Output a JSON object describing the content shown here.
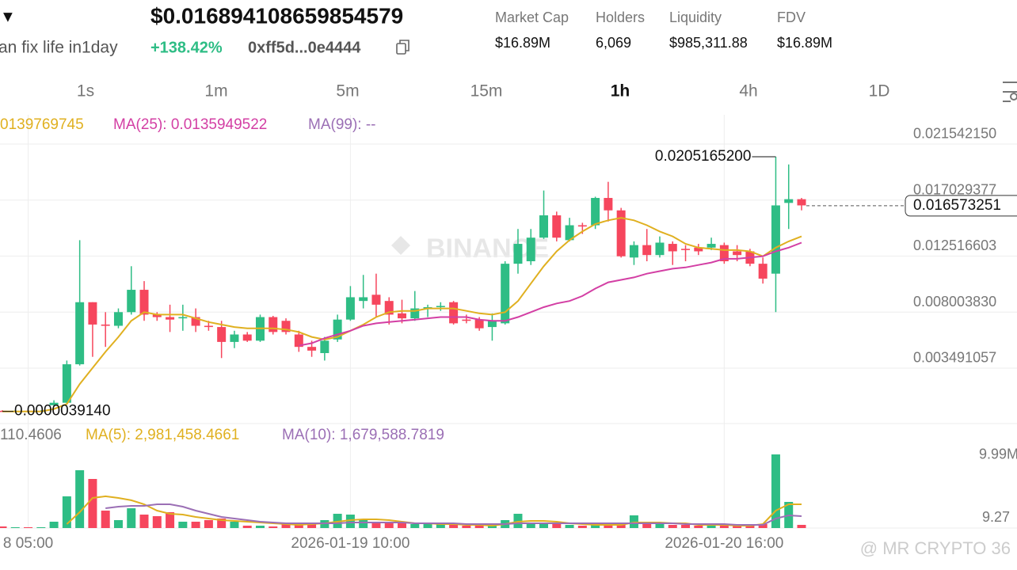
{
  "header": {
    "arrow": "▼",
    "price": "$0.016894108659854579",
    "name": "an fix life in1day",
    "change": "+138.42%",
    "address": "0xff5d...0e4444",
    "stats": [
      {
        "label": "Market Cap",
        "value": "$16.89M"
      },
      {
        "label": "Holders",
        "value": "6,069"
      },
      {
        "label": "Liquidity",
        "value": "$985,311.88"
      },
      {
        "label": "FDV",
        "value": "$16.89M"
      }
    ]
  },
  "intervals": [
    "1s",
    "1m",
    "5m",
    "15m",
    "1h",
    "4h",
    "1D"
  ],
  "watermark": "BINANCE",
  "footer_watermark": "@ MR CRYPTO 36",
  "chart_data": {
    "type": "candlestick",
    "categories": [
      null,
      null,
      "8 05:00",
      null,
      null,
      null,
      null,
      null,
      null,
      null,
      null,
      null,
      null,
      null,
      null,
      null,
      null,
      null,
      null,
      null,
      null,
      null,
      null,
      null,
      null,
      null,
      null,
      "2026-01-19 10:00",
      null,
      null,
      null,
      null,
      null,
      null,
      null,
      null,
      null,
      null,
      null,
      null,
      null,
      null,
      null,
      null,
      null,
      null,
      null,
      null,
      null,
      null,
      null,
      null,
      null,
      null,
      null,
      null,
      "2026-01-20 16:00",
      null,
      null,
      null,
      null,
      null,
      null
    ],
    "open": [
      5e-05,
      4e-05,
      5e-05,
      4e-05,
      0.0005,
      0.0007,
      0.0038,
      0.0088,
      0.007,
      0.0069,
      0.008,
      0.0098,
      0.0078,
      0.0076,
      0.0075,
      0.0076,
      0.0069,
      0.0068,
      0.0056,
      0.0062,
      0.0057,
      0.0076,
      0.0073,
      0.0062,
      0.0052,
      0.0047,
      0.0058,
      0.0074,
      0.0089,
      0.0094,
      0.0089,
      0.0079,
      0.0075,
      0.0083,
      0.0084,
      0.0088,
      0.0074,
      0.0074,
      0.0068,
      0.0071,
      0.0119,
      0.0121,
      0.014,
      0.0158,
      0.0138,
      0.015,
      0.015,
      0.0172,
      0.0162,
      0.0124,
      0.0134,
      0.0126,
      0.0135,
      0.0131,
      0.0132,
      0.0132,
      0.0134,
      0.0129,
      0.0129,
      0.0119,
      0.0111,
      0.0168,
      0.0171
    ],
    "close": [
      4e-05,
      5e-05,
      4e-05,
      5e-05,
      0.0007,
      0.0038,
      0.0088,
      0.007,
      0.0069,
      0.008,
      0.0098,
      0.0078,
      0.0076,
      0.0074,
      0.0076,
      0.0069,
      0.0068,
      0.0056,
      0.0062,
      0.0057,
      0.0076,
      0.0064,
      0.0064,
      0.0052,
      0.0049,
      0.0057,
      0.0074,
      0.0092,
      0.0092,
      0.0086,
      0.0078,
      0.0075,
      0.0083,
      0.0084,
      0.0085,
      0.0071,
      0.0073,
      0.0067,
      0.0073,
      0.0119,
      0.0135,
      0.014,
      0.0158,
      0.014,
      0.015,
      0.0149,
      0.0172,
      0.0162,
      0.0125,
      0.0134,
      0.0126,
      0.0136,
      0.0129,
      0.013,
      0.0129,
      0.0135,
      0.0121,
      0.0126,
      0.0119,
      0.0107,
      0.0166,
      0.0171,
      0.0166
    ],
    "high": [
      0.0001,
      0.0001,
      0.0001,
      0.0001,
      0.0009,
      0.0041,
      0.0138,
      0.0088,
      0.008,
      0.0083,
      0.0117,
      0.0105,
      0.008,
      0.0086,
      0.0086,
      0.0083,
      0.0073,
      0.0073,
      0.0065,
      0.0064,
      0.0078,
      0.0077,
      0.0075,
      0.0065,
      0.0057,
      0.006,
      0.0078,
      0.0101,
      0.011,
      0.0111,
      0.0092,
      0.009,
      0.0097,
      0.0086,
      0.0088,
      0.0089,
      0.0078,
      0.0076,
      0.0079,
      0.0121,
      0.0147,
      0.0147,
      0.0178,
      0.0161,
      0.0156,
      0.0152,
      0.0173,
      0.0185,
      0.0164,
      0.0137,
      0.0147,
      0.0141,
      0.0137,
      0.0134,
      0.0135,
      0.014,
      0.0136,
      0.0134,
      0.0131,
      0.0124,
      0.02051652,
      0.0199,
      0.0172
    ],
    "low": [
      3.914e-06,
      3e-05,
      3e-05,
      3e-05,
      0.0004,
      0.0006,
      0.0037,
      0.0044,
      0.0052,
      0.0067,
      0.0078,
      0.0073,
      0.0073,
      0.0064,
      0.0065,
      0.0064,
      0.0065,
      0.0043,
      0.0051,
      0.0056,
      0.0056,
      0.0062,
      0.0062,
      0.0048,
      0.0044,
      0.0041,
      0.0056,
      0.0073,
      0.0083,
      0.0076,
      0.007,
      0.0071,
      0.0073,
      0.0076,
      0.0081,
      0.007,
      0.0071,
      0.0065,
      0.0057,
      0.007,
      0.0111,
      0.0118,
      0.0139,
      0.0137,
      0.0137,
      0.0143,
      0.0147,
      0.0153,
      0.0124,
      0.0118,
      0.0121,
      0.0124,
      0.0118,
      0.0121,
      0.0126,
      0.013,
      0.0119,
      0.0121,
      0.0117,
      0.0103,
      0.008,
      0.0147,
      0.0162
    ],
    "up_color": "#2ebd85",
    "down_color": "#f6465d",
    "high_label": "0.0205165200",
    "low_label": "0.0000039140",
    "last_price": 0.016573251,
    "ylim": [
      -0.000976,
      0.0239
    ],
    "yticks": [
      {
        "value": 0.02154215,
        "label": "0.021542150"
      },
      0.017029377,
      0.012516603,
      {
        "value": 0.00800383,
        "label": "0.008003830"
      },
      0.003491057
    ],
    "series": [
      {
        "name": "0139769745",
        "color": "#e0b020",
        "values": [
          0.0,
          0.0,
          0.0,
          0.0,
          0.0002,
          0.0006,
          0.0022,
          0.0035,
          0.0048,
          0.006,
          0.0073,
          0.008,
          0.0078,
          0.0078,
          0.0078,
          0.0075,
          0.0072,
          0.007,
          0.0068,
          0.0067,
          0.0067,
          0.0067,
          0.0066,
          0.0064,
          0.006,
          0.0058,
          0.006,
          0.0065,
          0.007,
          0.0076,
          0.008,
          0.0081,
          0.0081,
          0.0083,
          0.0083,
          0.0083,
          0.0081,
          0.0079,
          0.0078,
          0.008,
          0.0089,
          0.0103,
          0.0117,
          0.0129,
          0.0138,
          0.0145,
          0.0151,
          0.0154,
          0.0156,
          0.0154,
          0.015,
          0.0145,
          0.0141,
          0.0135,
          0.0132,
          0.0131,
          0.013,
          0.013,
          0.0129,
          0.0125,
          0.0132,
          0.0137,
          0.0141
        ]
      },
      {
        "name": "MA(25): 0.0135949522",
        "color": "#d33fa4",
        "values": [
          null,
          null,
          null,
          null,
          null,
          null,
          null,
          null,
          null,
          null,
          null,
          null,
          null,
          null,
          null,
          null,
          null,
          null,
          null,
          null,
          null,
          null,
          null,
          0.0053,
          0.0055,
          0.0059,
          0.0062,
          0.0065,
          0.0069,
          0.0071,
          0.0072,
          0.0073,
          0.0074,
          0.0075,
          0.0076,
          0.0076,
          0.0076,
          0.0074,
          0.0073,
          0.0073,
          0.0076,
          0.008,
          0.0084,
          0.0087,
          0.0089,
          0.0093,
          0.0099,
          0.0104,
          0.0106,
          0.0108,
          0.0111,
          0.0113,
          0.0115,
          0.0116,
          0.0118,
          0.012,
          0.0123,
          0.0123,
          0.0124,
          0.0125,
          0.0129,
          0.0132,
          0.0136
        ]
      },
      {
        "name": "MA(99): --",
        "color": "#9b6fb5"
      }
    ],
    "volume": {
      "label": "110.4606",
      "ylim": [
        0,
        15230000
      ],
      "yticks": [
        {
          "value": 9990000,
          "label": "9.99M"
        }
      ],
      "cut_label": "9.27",
      "values": [
        250000,
        100000,
        100000,
        100000,
        1000000,
        5000000,
        9120000,
        7740000,
        2750000,
        1250000,
        3120000,
        2120000,
        1870000,
        2500000,
        1000000,
        1000000,
        1250000,
        1500000,
        1000000,
        375000,
        375000,
        250000,
        625000,
        625000,
        750000,
        1250000,
        2250000,
        2120000,
        1250000,
        750000,
        875000,
        875000,
        625000,
        625000,
        625000,
        500000,
        375000,
        375000,
        375000,
        1250000,
        2250000,
        875000,
        750000,
        625000,
        500000,
        375000,
        500000,
        625000,
        500000,
        2000000,
        625000,
        625000,
        500000,
        500000,
        375000,
        375000,
        500000,
        375000,
        375000,
        625000,
        11610000,
        4120000,
        500000
      ],
      "series": [
        {
          "name": "MA(5): 2,981,458.4661",
          "color": "#e0b020",
          "values": [
            null,
            null,
            null,
            null,
            null,
            625000,
            2500000,
            4750000,
            5000000,
            4750000,
            4380000,
            3750000,
            2750000,
            2250000,
            2120000,
            1750000,
            1500000,
            1250000,
            1120000,
            1000000,
            875000,
            750000,
            625000,
            500000,
            625000,
            750000,
            1000000,
            1250000,
            1370000,
            1370000,
            1250000,
            1000000,
            750000,
            750000,
            625000,
            625000,
            500000,
            500000,
            375000,
            625000,
            1000000,
            1120000,
            1120000,
            1000000,
            750000,
            625000,
            500000,
            500000,
            500000,
            875000,
            875000,
            875000,
            750000,
            750000,
            500000,
            500000,
            500000,
            375000,
            375000,
            625000,
            2750000,
            3750000,
            3750000
          ]
        },
        {
          "name": "MA(10): 1,679,588.7819",
          "color": "#9b6fb5",
          "values": [
            null,
            null,
            null,
            null,
            null,
            null,
            null,
            null,
            3120000,
            3370000,
            3500000,
            3500000,
            3750000,
            3750000,
            3370000,
            2750000,
            2250000,
            1750000,
            1500000,
            1250000,
            1000000,
            875000,
            750000,
            750000,
            750000,
            750000,
            750000,
            875000,
            875000,
            875000,
            875000,
            875000,
            750000,
            750000,
            750000,
            750000,
            625000,
            625000,
            625000,
            625000,
            750000,
            750000,
            750000,
            750000,
            750000,
            750000,
            750000,
            750000,
            750000,
            750000,
            750000,
            750000,
            750000,
            625000,
            625000,
            625000,
            625000,
            500000,
            500000,
            500000,
            1500000,
            2000000,
            1870000
          ]
        }
      ]
    }
  }
}
